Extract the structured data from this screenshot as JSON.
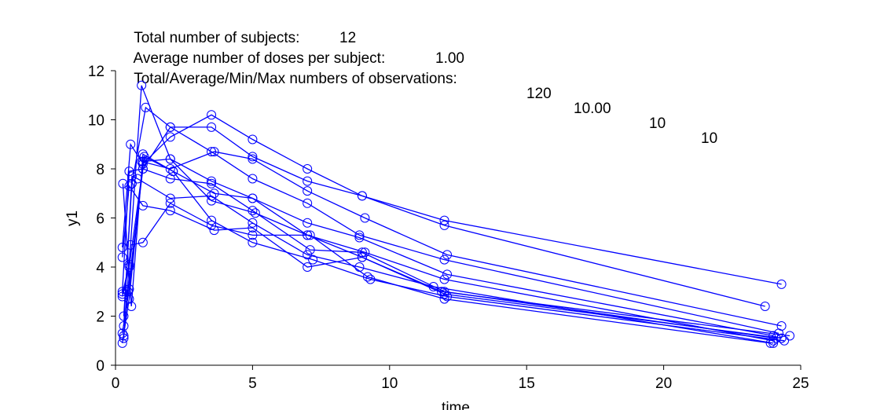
{
  "header": {
    "line1_label": "Total number of subjects:",
    "line1_value": "12",
    "line2_label": "Average number of doses per subject:",
    "line2_value": "1.00",
    "line3_label": "Total/Average/Min/Max numbers of observations:",
    "line3_values": [
      "120",
      "10.00",
      "10",
      "10"
    ]
  },
  "colors": {
    "series": "#0000ff",
    "axis": "#000000",
    "background": "#ffffff"
  },
  "chart_data": {
    "type": "line",
    "markers": "circle",
    "xlabel": "time",
    "ylabel": "y1",
    "xlim": [
      0,
      25
    ],
    "ylim": [
      0,
      12
    ],
    "xticks": [
      0,
      5,
      10,
      15,
      20,
      25
    ],
    "yticks": [
      0,
      2,
      4,
      6,
      8,
      10,
      12
    ],
    "grid": false,
    "series": [
      {
        "x": [
          0.25,
          0.5,
          1.0,
          2.0,
          3.5,
          5.0,
          7.0,
          9.0,
          12.0,
          24.3
        ],
        "y": [
          3.0,
          7.9,
          8.0,
          9.7,
          9.7,
          8.5,
          7.5,
          6.9,
          5.9,
          3.3
        ]
      },
      {
        "x": [
          0.25,
          0.5,
          1.0,
          2.0,
          3.5,
          5.0,
          7.0,
          9.0,
          12.0,
          23.7
        ],
        "y": [
          1.3,
          3.1,
          8.2,
          9.3,
          10.2,
          9.2,
          8.0,
          6.9,
          5.7,
          2.4
        ]
      },
      {
        "x": [
          0.25,
          0.55,
          0.95,
          2.0,
          3.6,
          5.0,
          7.0,
          9.1,
          12.1,
          24.3
        ],
        "y": [
          4.8,
          9.0,
          8.3,
          8.0,
          8.7,
          8.4,
          7.1,
          6.0,
          4.5,
          1.6
        ]
      },
      {
        "x": [
          0.3,
          0.6,
          1.1,
          2.0,
          3.5,
          5.0,
          7.0,
          8.9,
          12.0,
          24.2
        ],
        "y": [
          2.0,
          7.4,
          10.5,
          9.7,
          8.7,
          7.6,
          6.6,
          5.3,
          4.3,
          1.3
        ]
      },
      {
        "x": [
          0.25,
          0.5,
          0.95,
          2.0,
          3.5,
          5.0,
          7.0,
          8.9,
          12.1,
          24.0
        ],
        "y": [
          2.9,
          4.1,
          11.4,
          8.4,
          7.5,
          6.8,
          5.8,
          5.2,
          3.7,
          1.2
        ]
      },
      {
        "x": [
          0.27,
          0.58,
          1.0,
          2.1,
          3.6,
          5.0,
          7.0,
          9.1,
          12.0,
          24.0
        ],
        "y": [
          7.4,
          2.4,
          8.6,
          7.9,
          7.0,
          6.8,
          5.3,
          4.6,
          3.5,
          1.0
        ]
      },
      {
        "x": [
          0.3,
          0.45,
          1.0,
          2.0,
          3.5,
          5.0,
          7.1,
          9.0,
          12.0,
          24.1
        ],
        "y": [
          1.2,
          3.0,
          8.0,
          7.6,
          7.4,
          6.3,
          4.7,
          4.6,
          3.0,
          1.1
        ]
      },
      {
        "x": [
          0.25,
          0.5,
          1.0,
          2.0,
          3.5,
          5.1,
          7.0,
          9.0,
          12.0,
          24.3
        ],
        "y": [
          0.9,
          2.7,
          8.3,
          8.4,
          6.7,
          6.2,
          5.3,
          4.4,
          2.9,
          1.1
        ]
      },
      {
        "x": [
          0.3,
          0.6,
          0.8,
          2.0,
          3.5,
          5.0,
          7.0,
          8.9,
          11.6,
          24.0
        ],
        "y": [
          1.6,
          7.7,
          7.6,
          6.8,
          6.9,
          5.8,
          4.5,
          4.0,
          3.2,
          0.9
        ]
      },
      {
        "x": [
          0.25,
          0.5,
          1.0,
          2.0,
          3.6,
          5.0,
          7.0,
          9.0,
          11.9,
          24.6
        ],
        "y": [
          4.4,
          7.3,
          6.5,
          6.3,
          5.5,
          5.6,
          4.0,
          4.4,
          3.0,
          1.2
        ]
      },
      {
        "x": [
          0.25,
          0.5,
          1.05,
          2.1,
          3.5,
          5.0,
          7.2,
          9.3,
          12.1,
          24.4
        ],
        "y": [
          2.8,
          4.0,
          8.5,
          7.9,
          5.9,
          5.0,
          4.3,
          3.5,
          2.8,
          1.0
        ]
      },
      {
        "x": [
          0.3,
          0.55,
          1.0,
          2.0,
          3.5,
          5.0,
          7.1,
          9.2,
          12.0,
          23.9
        ],
        "y": [
          1.1,
          4.9,
          5.0,
          6.6,
          5.7,
          5.3,
          5.3,
          3.6,
          2.7,
          0.9
        ]
      }
    ]
  }
}
